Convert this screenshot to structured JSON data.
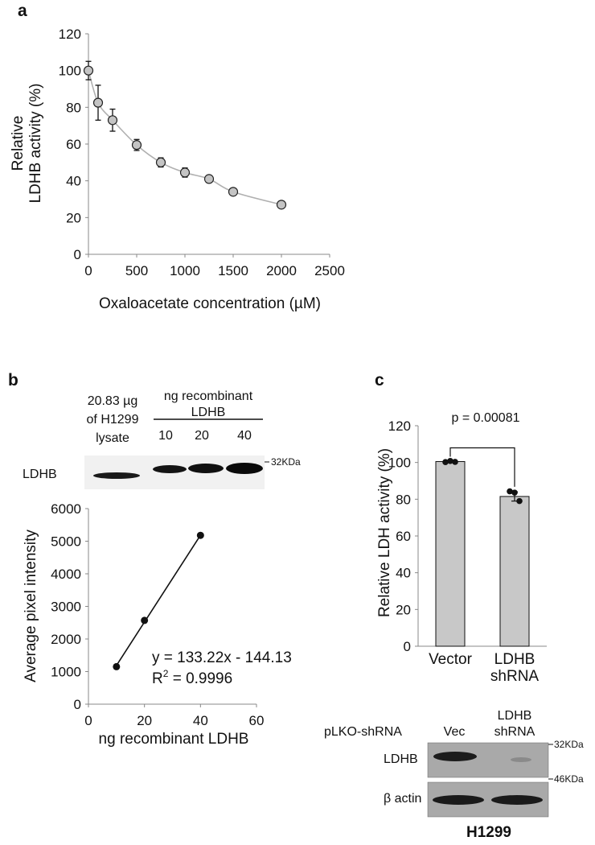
{
  "panels": {
    "a": "a",
    "b": "b",
    "c": "c"
  },
  "chart_data": [
    {
      "id": "a",
      "type": "scatter",
      "title": "",
      "xlabel": "Oxaloacetate concentration (µM)",
      "ylabel_lines": [
        "Relative",
        "LDHB activity (%)"
      ],
      "xlim": [
        0,
        2500
      ],
      "ylim": [
        0,
        120
      ],
      "xticks": [
        0,
        500,
        1000,
        1500,
        2000,
        2500
      ],
      "yticks": [
        0,
        20,
        40,
        60,
        80,
        100,
        120
      ],
      "points": [
        {
          "x": 0,
          "y": 100,
          "err": 5
        },
        {
          "x": 100,
          "y": 82.5,
          "err": 9.5
        },
        {
          "x": 250,
          "y": 73,
          "err": 6
        },
        {
          "x": 500,
          "y": 59.5,
          "err": 3
        },
        {
          "x": 750,
          "y": 50,
          "err": 2.5
        },
        {
          "x": 1000,
          "y": 44.5,
          "err": 2.5
        },
        {
          "x": 1250,
          "y": 41,
          "err": 1
        },
        {
          "x": 1500,
          "y": 34,
          "err": 0.8
        },
        {
          "x": 2000,
          "y": 27,
          "err": 1
        }
      ],
      "grid": false,
      "legend": "none"
    },
    {
      "id": "b",
      "type": "scatter",
      "xlabel": "ng recombinant LDHB",
      "ylabel": "Average pixel intensity",
      "xlim": [
        0,
        60
      ],
      "ylim": [
        0,
        6000
      ],
      "xticks": [
        0,
        20,
        40,
        60
      ],
      "yticks": [
        0,
        1000,
        2000,
        3000,
        4000,
        5000,
        6000
      ],
      "points": [
        {
          "x": 10,
          "y": 1150
        },
        {
          "x": 20,
          "y": 2570
        },
        {
          "x": 40,
          "y": 5180
        }
      ],
      "trendline": {
        "slope": 133.22,
        "intercept": -144.13,
        "x_range": [
          10,
          40
        ]
      },
      "equation": "y = 133.22x - 144.13",
      "r2_prefix": "R",
      "r2_sup": "2",
      "r2_value": " = 0.9996"
    },
    {
      "id": "c",
      "type": "bar",
      "ylabel": "Relative LDH activity (%)",
      "ylim": [
        0,
        120
      ],
      "yticks": [
        0,
        20,
        40,
        60,
        80,
        100,
        120
      ],
      "categories": [
        [
          "Vector"
        ],
        [
          "LDHB",
          "shRNA"
        ]
      ],
      "values": [
        100.5,
        81.5
      ],
      "errors": [
        0.5,
        2.5
      ],
      "replicates": [
        [
          100.2,
          100.8,
          100.3
        ],
        [
          84.3,
          83.6,
          79.0
        ]
      ],
      "annotation": "p = 0.00081",
      "bar_color": "#c8c8c8"
    }
  ],
  "blot_b": {
    "lysate_label": [
      "20.83 µg",
      "of H1299",
      "lysate"
    ],
    "recombinant_label": [
      "ng recombinant",
      "LDHB"
    ],
    "lanes": [
      "10",
      "20",
      "40"
    ],
    "row_label": "LDHB",
    "marker": "32KDa"
  },
  "blot_c": {
    "construct_label": "pLKO-shRNA",
    "lanes": [
      [
        "Vec"
      ],
      [
        "LDHB",
        "shRNA"
      ]
    ],
    "row1_label": "LDHB",
    "row2_label": "β actin",
    "marker1": "32KDa",
    "marker2": "46KDa",
    "cell_line": "H1299"
  }
}
